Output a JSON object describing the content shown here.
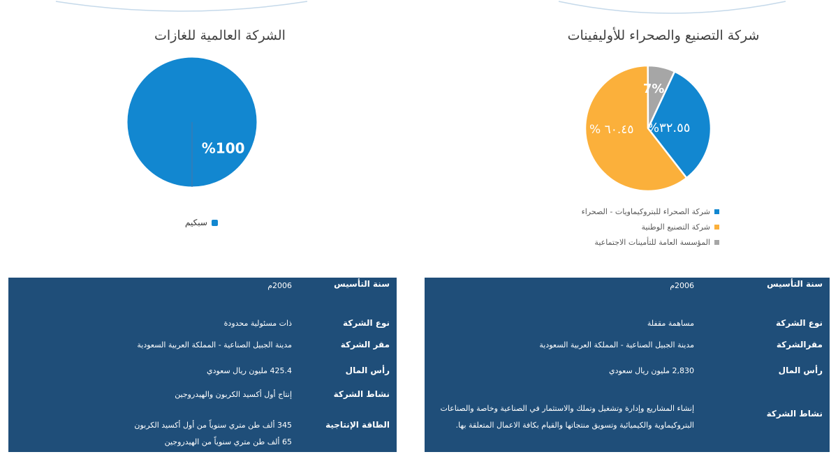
{
  "charts": [
    {
      "title": "الشركة العالمية للغازات",
      "slices": [
        {
          "name": "سبكيم",
          "value": 100,
          "label": "%100",
          "color": "#1287d0"
        }
      ]
    },
    {
      "title": "شركة التصنيع والصحراء للأوليفينات",
      "slices": [
        {
          "name": "شركة الصحراء للبتروكيماويات - الصحراء",
          "value": 32.55,
          "label": "%٣٢.٥٥",
          "color": "#1287d0"
        },
        {
          "name": "شركة التصنيع الوطنية",
          "value": 60.45,
          "label": "% ٦٠.٤٥",
          "color": "#fbb03b"
        },
        {
          "name": "المؤسسة العامة للتأمينات الاجتماعية",
          "value": 7,
          "label": "7%",
          "color": "#a6a6a6"
        }
      ]
    }
  ],
  "chart_data": [
    {
      "type": "pie",
      "title": "الشركة العالمية للغازات",
      "categories": [
        "سبكيم"
      ],
      "values": [
        100
      ],
      "legend": "bottom"
    },
    {
      "type": "pie",
      "title": "شركة التصنيع والصحراء للأوليفينات",
      "categories": [
        "شركة الصحراء للبتروكيماويات - الصحراء",
        "شركة التصنيع الوطنية",
        "المؤسسة العامة للتأمينات الاجتماعية"
      ],
      "values": [
        32.55,
        60.45,
        7
      ],
      "legend": "bottom"
    }
  ],
  "table_left": [
    {
      "label": "سنة التأسيس",
      "lines": [
        "2006م"
      ]
    },
    {
      "label": "نوع الشركة",
      "lines": [
        "ذات مسئولية محدودة"
      ]
    },
    {
      "label": "مقر الشركة",
      "lines": [
        "مدينة الجبيل الصناعية - المملكة العربية السعودية"
      ]
    },
    {
      "label": "رأس المال",
      "lines": [
        "425.4 مليون ريال سعودي"
      ]
    },
    {
      "label": "نشاط الشركة",
      "lines": [
        "إنتاج أول أكسيد الكربون والهيدروجين"
      ]
    },
    {
      "label": "الطاقة الإنتاجية",
      "lines": [
        "345  ألف طن متري سنوياً من أول أكسيد الكربون",
        "65  ألف طن متري سنوياً من الهيدروجين"
      ]
    }
  ],
  "table_right": [
    {
      "label": "سنة التأسيس",
      "lines": [
        "2006م"
      ]
    },
    {
      "label": "نوع الشركة",
      "lines": [
        "مساهمة مقفلة"
      ]
    },
    {
      "label": "مقرالشركة",
      "lines": [
        "مدينة الجبيل الصناعية - المملكة العربية السعودية"
      ]
    },
    {
      "label": "رأس المال",
      "lines": [
        "2,830 مليون ريال سعودي"
      ]
    },
    {
      "label": "نشاط الشركة",
      "lines": [
        "إنشاء المشاريع وإدارة وتشغيل وتملك والاستثمار في الصناعية وخاصة والصناعات",
        "البتروكيماوية والكيميائية وتسويق منتجاتها والقيام بكافة الاعمال المتعلقة بها."
      ]
    }
  ]
}
